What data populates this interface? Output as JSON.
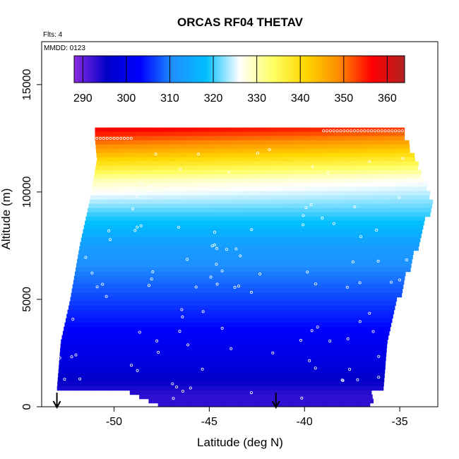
{
  "chart_data": {
    "type": "heatmap",
    "title": "ORCAS RF04 THETAV",
    "flights_label": "Flts: 4",
    "date_label": "MMDD: 0123",
    "xlabel": "Latitude (deg N)",
    "ylabel": "Altitude (m)",
    "xlim": [
      -53.8,
      -33.0
    ],
    "ylim": [
      0,
      17000
    ],
    "x_ticks": [
      -50,
      -45,
      -40,
      -35
    ],
    "y_ticks": [
      0,
      5000,
      10000,
      15000
    ],
    "colorbar": {
      "min": 288,
      "max": 364,
      "ticks": [
        290,
        300,
        310,
        320,
        330,
        340,
        350,
        360
      ],
      "colors": [
        "#8a2be2",
        "#0000c8",
        "#0000ff",
        "#1e90ff",
        "#00bfff",
        "#ffffff",
        "#ffff66",
        "#ffd700",
        "#ff8c00",
        "#ff0000",
        "#b22222"
      ]
    },
    "field": {
      "x_min": -53.0,
      "x_max": -33.2,
      "y_min": 0,
      "y_max": 13000,
      "z_min": 293,
      "z_max": 357,
      "description_values": "thetav increases with altitude from ~295 K near surface to ~355 K at top"
    },
    "coverage": [
      {
        "alt": 800,
        "lat_min": -53.0,
        "lat_max": -36.0
      },
      {
        "alt": 3000,
        "lat_min": -52.8,
        "lat_max": -35.8
      },
      {
        "alt": 5000,
        "lat_min": -52.3,
        "lat_max": -35.2
      },
      {
        "alt": 7500,
        "lat_min": -51.8,
        "lat_max": -34.2
      },
      {
        "alt": 9500,
        "lat_min": -51.3,
        "lat_max": -33.4
      },
      {
        "alt": 11500,
        "lat_min": -50.9,
        "lat_max": -34.3
      },
      {
        "alt": 12500,
        "lat_min": -51.0,
        "lat_max": -34.8
      }
    ],
    "markers_lat": [
      -53.0,
      -41.5
    ]
  }
}
